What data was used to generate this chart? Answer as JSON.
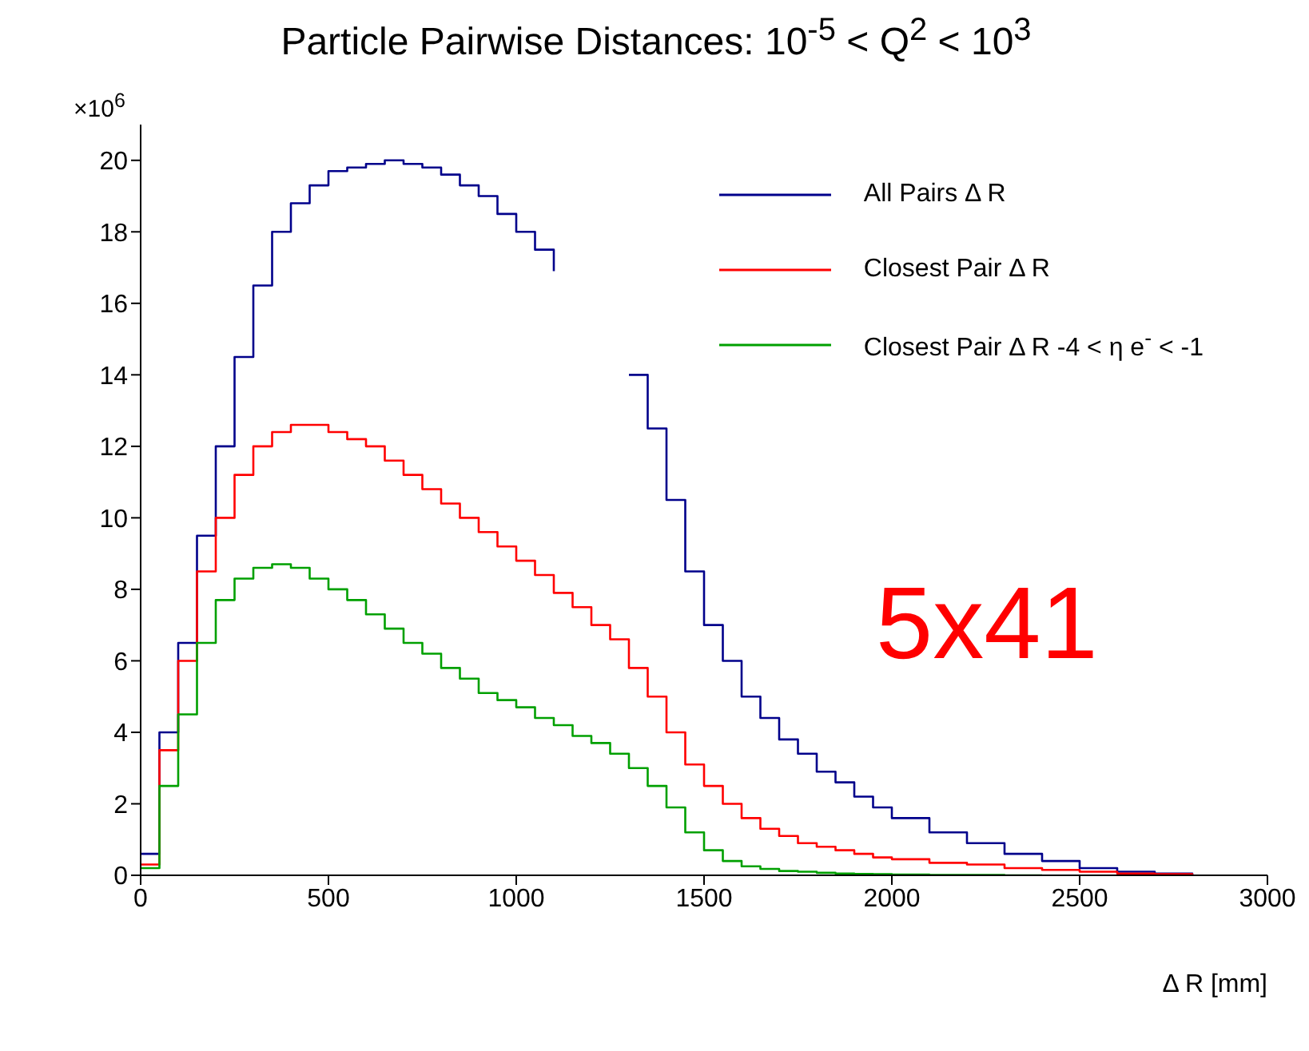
{
  "chart_data": {
    "type": "step",
    "title": "Particle Pairwise Distances: 10$^{-5}$ < Q$^{2}$ < 10$^{3}$",
    "xlabel": "Δ R [mm]",
    "annotations": [
      "×10$^{6}$",
      "5x41"
    ],
    "x": [
      0,
      50,
      100,
      150,
      200,
      250,
      300,
      350,
      400,
      450,
      500,
      550,
      600,
      650,
      700,
      750,
      800,
      850,
      900,
      950,
      1000,
      1050,
      1100,
      1150,
      1200,
      1250,
      1300,
      1350,
      1400,
      1450,
      1500,
      1550,
      1600,
      1650,
      1700,
      1750,
      1800,
      1850,
      1900,
      1950,
      2000,
      2100,
      2200,
      2300,
      2400,
      2500,
      2600,
      2700,
      2800
    ],
    "series": [
      {
        "name": "All Pairs Δ R",
        "color": "#00008b",
        "values": [
          0.6,
          4,
          6.5,
          9.5,
          12,
          14.5,
          16.5,
          18,
          18.8,
          19.3,
          19.7,
          19.8,
          19.9,
          20,
          19.9,
          19.8,
          19.6,
          19.3,
          19,
          18.5,
          18,
          17.5,
          16.9,
          null,
          null,
          null,
          14,
          12.5,
          10.5,
          8.5,
          7,
          6,
          5,
          4.4,
          3.8,
          3.4,
          2.9,
          2.6,
          2.2,
          1.9,
          1.6,
          1.2,
          0.9,
          0.6,
          0.4,
          0.2,
          0.1,
          0.05,
          0
        ]
      },
      {
        "name": "Closest Pair Δ R",
        "color": "#ff0000",
        "values": [
          0.3,
          3.5,
          6,
          8.5,
          10,
          11.2,
          12,
          12.4,
          12.6,
          12.6,
          12.4,
          12.2,
          12,
          11.6,
          11.2,
          10.8,
          10.4,
          10,
          9.6,
          9.2,
          8.8,
          8.4,
          7.9,
          7.5,
          7,
          6.6,
          5.8,
          5,
          4,
          3.1,
          2.5,
          2,
          1.6,
          1.3,
          1.1,
          0.9,
          0.8,
          0.7,
          0.6,
          0.5,
          0.45,
          0.35,
          0.3,
          0.2,
          0.15,
          0.1,
          0.05,
          0.03,
          0
        ]
      },
      {
        "name": "Closest Pair Δ R -4 < η e$^{-}$ < -1",
        "color": "#00a000",
        "values": [
          0.2,
          2.5,
          4.5,
          6.5,
          7.7,
          8.3,
          8.6,
          8.7,
          8.6,
          8.3,
          8,
          7.7,
          7.3,
          6.9,
          6.5,
          6.2,
          5.8,
          5.5,
          5.1,
          4.9,
          4.7,
          4.4,
          4.2,
          3.9,
          3.7,
          3.4,
          3,
          2.5,
          1.9,
          1.2,
          0.7,
          0.4,
          0.25,
          0.18,
          0.12,
          0.1,
          0.07,
          0.05,
          0.04,
          0.03,
          0.02,
          0.01,
          0.01,
          0,
          0,
          null,
          null,
          null,
          null
        ]
      }
    ],
    "xlim": [
      0,
      3000
    ],
    "xticks": [
      0,
      500,
      1000,
      1500,
      2000,
      2500,
      3000
    ],
    "ylim": [
      0,
      21
    ],
    "yticks": [
      0,
      2,
      4,
      6,
      8,
      10,
      12,
      14,
      16,
      18,
      20
    ],
    "grid": false,
    "legend": "top right"
  }
}
